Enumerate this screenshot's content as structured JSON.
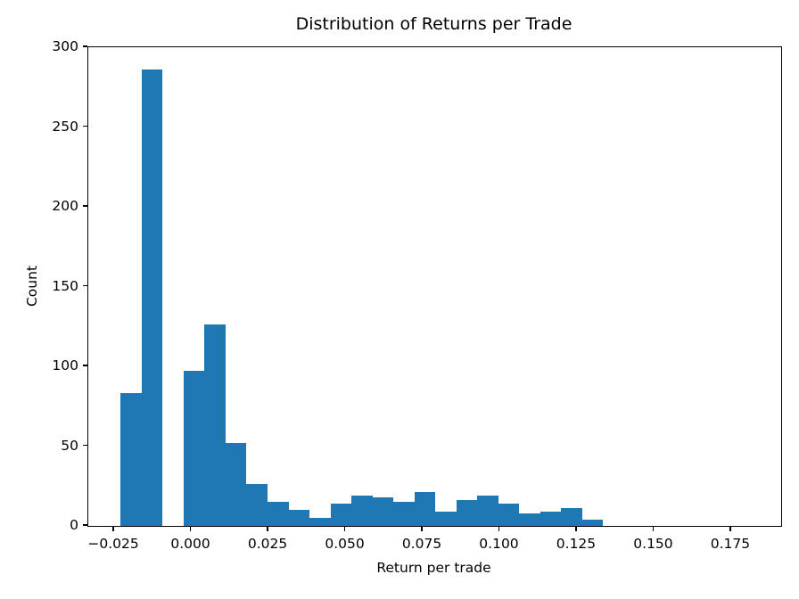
{
  "chart_data": {
    "type": "bar",
    "subtype": "histogram",
    "title": "Distribution of Returns per Trade",
    "xlabel": "Return per trade",
    "ylabel": "Count",
    "bar_color": "#1f77b4",
    "axis_color": "#000000",
    "bin_start": -0.0229,
    "bin_width": 0.0068,
    "counts": [
      83,
      286,
      0,
      97,
      126,
      52,
      26,
      15,
      10,
      5,
      14,
      19,
      18,
      15,
      21,
      9,
      16,
      19,
      14,
      8,
      9,
      11,
      4
    ],
    "xlim": [
      -0.0334,
      0.1912
    ],
    "ylim": [
      0,
      300
    ],
    "xticks": {
      "values": [
        -0.025,
        0.0,
        0.025,
        0.05,
        0.075,
        0.1,
        0.125,
        0.15,
        0.175
      ],
      "labels": [
        "−0.025",
        "0.000",
        "0.025",
        "0.050",
        "0.075",
        "0.100",
        "0.125",
        "0.150",
        "0.175"
      ]
    },
    "yticks": {
      "values": [
        0,
        50,
        100,
        150,
        200,
        250,
        300
      ],
      "labels": [
        "0",
        "50",
        "100",
        "150",
        "200",
        "250",
        "300"
      ]
    },
    "grid": false,
    "legend_position": "none"
  }
}
